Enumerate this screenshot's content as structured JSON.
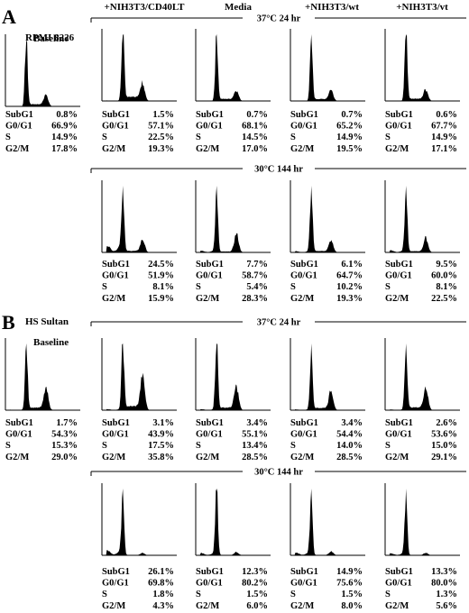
{
  "figure": {
    "columns": [
      "+NIH3T3/CD40LT",
      "Media",
      "+NIH3T3/wt",
      "+NIH3T3/vt"
    ],
    "baseline_label": "Baseline",
    "stat_labels": [
      "SubG1",
      "G0/G1",
      "S",
      "G2/M"
    ],
    "panels": [
      {
        "letter": "A",
        "cell_line": "RPMI 8226",
        "condition_labels": [
          "37°C 24 hr",
          "30°C 144 hr"
        ],
        "baseline_stats": [
          "0.8%",
          "66.9%",
          "14.9%",
          "17.8%"
        ],
        "row1_stats": [
          [
            "1.5%",
            "57.1%",
            "22.5%",
            "19.3%"
          ],
          [
            "0.7%",
            "68.1%",
            "14.5%",
            "17.0%"
          ],
          [
            "0.7%",
            "65.2%",
            "14.9%",
            "19.5%"
          ],
          [
            "0.6%",
            "67.7%",
            "14.9%",
            "17.1%"
          ]
        ],
        "row2_stats": [
          [
            "24.5%",
            "51.9%",
            "8.1%",
            "15.9%"
          ],
          [
            "7.7%",
            "58.7%",
            "5.4%",
            "28.3%"
          ],
          [
            "6.1%",
            "64.7%",
            "10.2%",
            "19.3%"
          ],
          [
            "9.5%",
            "60.0%",
            "8.1%",
            "22.5%"
          ]
        ]
      },
      {
        "letter": "B",
        "cell_line": "HS Sultan",
        "condition_labels": [
          "37°C 24 hr",
          "30°C 144 hr"
        ],
        "baseline_stats": [
          "1.7%",
          "54.3%",
          "15.3%",
          "29.0%"
        ],
        "row1_stats": [
          [
            "3.1%",
            "43.9%",
            "17.5%",
            "35.8%"
          ],
          [
            "3.4%",
            "55.1%",
            "13.4%",
            "28.5%"
          ],
          [
            "3.4%",
            "54.4%",
            "14.0%",
            "28.5%"
          ],
          [
            "2.6%",
            "53.6%",
            "15.0%",
            "29.1%"
          ]
        ],
        "row2_stats": [
          [
            "26.1%",
            "69.8%",
            "1.8%",
            "4.3%"
          ],
          [
            "12.3%",
            "80.2%",
            "1.5%",
            "6.0%"
          ],
          [
            "14.9%",
            "75.6%",
            "1.5%",
            "8.0%"
          ],
          [
            "13.3%",
            "80.0%",
            "1.3%",
            "5.6%"
          ]
        ]
      }
    ]
  },
  "chart_data": [
    {
      "type": "area",
      "panel": "A",
      "condition": "Baseline",
      "series": [
        {
          "name": "RPMI 8226 Baseline",
          "subG1": 0.8,
          "g0g1": 66.9,
          "s": 14.9,
          "g2m": 17.8
        }
      ]
    },
    {
      "type": "area",
      "panel": "A",
      "condition": "37°C 24 hr",
      "series": [
        {
          "name": "+NIH3T3/CD40LT",
          "subG1": 1.5,
          "g0g1": 57.1,
          "s": 22.5,
          "g2m": 19.3
        },
        {
          "name": "Media",
          "subG1": 0.7,
          "g0g1": 68.1,
          "s": 14.5,
          "g2m": 17.0
        },
        {
          "name": "+NIH3T3/wt",
          "subG1": 0.7,
          "g0g1": 65.2,
          "s": 14.9,
          "g2m": 19.5
        },
        {
          "name": "+NIH3T3/vt",
          "subG1": 0.6,
          "g0g1": 67.7,
          "s": 14.9,
          "g2m": 17.1
        }
      ]
    },
    {
      "type": "area",
      "panel": "A",
      "condition": "30°C 144 hr",
      "series": [
        {
          "name": "+NIH3T3/CD40LT",
          "subG1": 24.5,
          "g0g1": 51.9,
          "s": 8.1,
          "g2m": 15.9
        },
        {
          "name": "Media",
          "subG1": 7.7,
          "g0g1": 58.7,
          "s": 5.4,
          "g2m": 28.3
        },
        {
          "name": "+NIH3T3/wt",
          "subG1": 6.1,
          "g0g1": 64.7,
          "s": 10.2,
          "g2m": 19.3
        },
        {
          "name": "+NIH3T3/vt",
          "subG1": 9.5,
          "g0g1": 60.0,
          "s": 8.1,
          "g2m": 22.5
        }
      ]
    },
    {
      "type": "area",
      "panel": "B",
      "condition": "Baseline",
      "series": [
        {
          "name": "HS Sultan Baseline",
          "subG1": 1.7,
          "g0g1": 54.3,
          "s": 15.3,
          "g2m": 29.0
        }
      ]
    },
    {
      "type": "area",
      "panel": "B",
      "condition": "37°C 24 hr",
      "series": [
        {
          "name": "+NIH3T3/CD40LT",
          "subG1": 3.1,
          "g0g1": 43.9,
          "s": 17.5,
          "g2m": 35.8
        },
        {
          "name": "Media",
          "subG1": 3.4,
          "g0g1": 55.1,
          "s": 13.4,
          "g2m": 28.5
        },
        {
          "name": "+NIH3T3/wt",
          "subG1": 3.4,
          "g0g1": 54.4,
          "s": 14.0,
          "g2m": 28.5
        },
        {
          "name": "+NIH3T3/vt",
          "subG1": 2.6,
          "g0g1": 53.6,
          "s": 15.0,
          "g2m": 29.1
        }
      ]
    },
    {
      "type": "area",
      "panel": "B",
      "condition": "30°C 144 hr",
      "series": [
        {
          "name": "+NIH3T3/CD40LT",
          "subG1": 26.1,
          "g0g1": 69.8,
          "s": 1.8,
          "g2m": 4.3
        },
        {
          "name": "Media",
          "subG1": 12.3,
          "g0g1": 80.2,
          "s": 1.5,
          "g2m": 6.0
        },
        {
          "name": "+NIH3T3/wt",
          "subG1": 14.9,
          "g0g1": 75.6,
          "s": 1.5,
          "g2m": 8.0
        },
        {
          "name": "+NIH3T3/vt",
          "subG1": 13.3,
          "g0g1": 80.0,
          "s": 1.3,
          "g2m": 5.6
        }
      ]
    }
  ]
}
